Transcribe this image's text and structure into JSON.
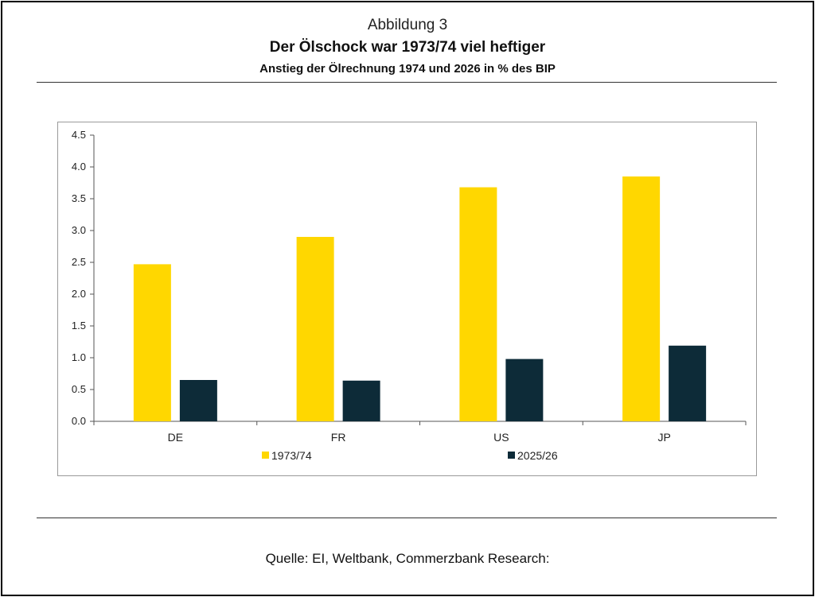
{
  "figure": {
    "caption": "Abbildung 3",
    "title": "Der Ölschock war 1973/74 viel heftiger",
    "subtitle": "Anstieg der Ölrechnung 1974 und 2026 in % des BIP"
  },
  "source": "Quelle: EI, Weltbank, Commerzbank Research:",
  "chart_data": {
    "type": "bar",
    "title": "Der Ölschock war 1973/74 viel heftiger",
    "subtitle": "Anstieg der Ölrechnung 1974 und 2026 in % des BIP",
    "xlabel": "",
    "ylabel": "",
    "categories": [
      "DE",
      "FR",
      "US",
      "JP"
    ],
    "series": [
      {
        "name": "1973/74",
        "color": "#FFD700",
        "values": [
          2.47,
          2.9,
          3.68,
          3.85
        ]
      },
      {
        "name": "2025/26",
        "color": "#0D2B38",
        "values": [
          0.65,
          0.64,
          0.98,
          1.19
        ]
      }
    ],
    "ylim": [
      0,
      4.5
    ],
    "yticks": [
      "0.0",
      "0.5",
      "1.0",
      "1.5",
      "2.0",
      "2.5",
      "3.0",
      "3.5",
      "4.0",
      "4.5"
    ],
    "grid": false,
    "legend": "bottom"
  }
}
